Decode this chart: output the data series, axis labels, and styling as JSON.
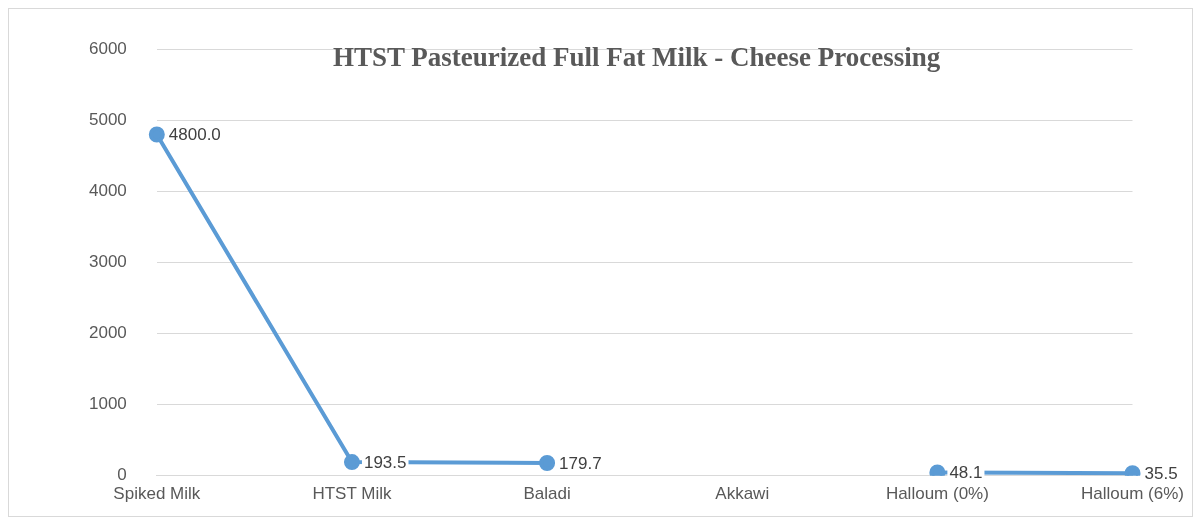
{
  "chart_data": {
    "type": "line",
    "title": "HTST Pasteurized Full Fat Milk - Cheese Processing",
    "categories": [
      "Spiked Milk",
      "HTST Milk",
      "Baladi",
      "Akkawi",
      "Halloum (0%)",
      "Halloum (6%)"
    ],
    "series": [
      {
        "color": "#5b9bd5",
        "values": [
          4800,
          193.5,
          179.7,
          null,
          48.1,
          35.5
        ],
        "value_labels": [
          "4800.0",
          "193.5",
          "179.7",
          null,
          "48.1",
          "35.5"
        ]
      }
    ],
    "ylim": [
      0,
      6000
    ],
    "yticks": [
      0,
      1000,
      2000,
      3000,
      4000,
      5000,
      6000
    ],
    "grid": "y",
    "marker": "circle",
    "line_style": "solid",
    "legend": false
  }
}
